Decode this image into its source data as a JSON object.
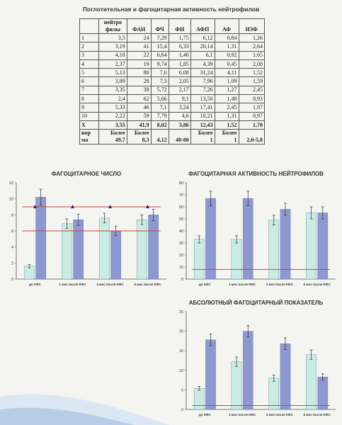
{
  "page_title": "Поглотительная и фагоцитарная активность нейтрофилов",
  "table": {
    "columns": [
      "",
      "нейтро\nфилы",
      "ФАН",
      "ФЧ",
      "ФИ",
      "АФП",
      "АФ",
      "ИЗФ"
    ],
    "rows": [
      [
        "1",
        "3,5",
        "24",
        "7,29",
        "1,75",
        "6,12",
        "0,84",
        "1,26"
      ],
      [
        "2",
        "3,19",
        "41",
        "15,4",
        "6,33",
        "20,14",
        "1,31",
        "2,64"
      ],
      [
        "3",
        "4,18",
        "22",
        "6,64",
        "1,46",
        "6,1",
        "0,92",
        "1,65"
      ],
      [
        "4",
        "2,37",
        "19",
        "9,74",
        "1,85",
        "4,39",
        "0,45",
        "2,08"
      ],
      [
        "5",
        "5,13",
        "80",
        "7,6",
        "6,08",
        "31,24",
        "4,11",
        "1,52"
      ],
      [
        "6",
        "3,89",
        "28",
        "7,3",
        "2,05",
        "7,96",
        "1,09",
        "1,59"
      ],
      [
        "7",
        "3,35",
        "38",
        "5,72",
        "2,17",
        "7,26",
        "1,27",
        "2,45"
      ],
      [
        "8",
        "2,4",
        "62",
        "5,66",
        "9,1",
        "13,56",
        "1,49",
        "0,93"
      ],
      [
        "9",
        "5,33",
        "46",
        "7,1",
        "3,24",
        "17,41",
        "2,45",
        "1,97"
      ],
      [
        "10",
        "2,22",
        "59",
        "7,79",
        "4,6",
        "10,21",
        "1,31",
        "0,97"
      ],
      [
        "X",
        "3,55",
        "41,9",
        "8,02",
        "3,86",
        "12,43",
        "1,52",
        "1,70"
      ]
    ],
    "norm_row": [
      "нор\nма",
      "Более\n49,7",
      "Более\n8,3",
      "4,12",
      "40-80",
      "Более\n1",
      "Более\n1",
      "2,0-5,8"
    ]
  },
  "chart_data": [
    {
      "type": "bar",
      "title": "ФАГОЦИТАРНОЕ ЧИСЛО",
      "categories": [
        "до КФС",
        "1 мес после КФС",
        "3 мес после КФС",
        "6 мес после КФС"
      ],
      "series": [
        {
          "values": [
            1.6,
            6.9,
            7.6,
            7.4
          ],
          "color": "#c9ece3"
        },
        {
          "values": [
            10.2,
            7.4,
            6.0,
            8.0
          ],
          "color": "#8c98cf"
        }
      ],
      "errors": [
        [
          0.2,
          0.6,
          0.6,
          0.6
        ],
        [
          1.0,
          0.7,
          0.6,
          0.7
        ]
      ],
      "reference_lines": [
        {
          "value": 9.0,
          "markers": true
        },
        {
          "value": 6.0,
          "markers": false
        }
      ],
      "ylim": [
        0,
        12
      ],
      "yticks": [
        "0",
        "2",
        "4",
        "6",
        "8",
        "10",
        "12"
      ],
      "grid": false
    },
    {
      "type": "bar",
      "title": "ФАГОЦИТАРНАЯ АКТИВНОСТЬ НЕЙТРОФИЛОВ",
      "categories": [
        "до КФС",
        "1 мес после КФС",
        "3 мес после КФС",
        "6 мес после КФС"
      ],
      "series": [
        {
          "values": [
            33,
            33,
            49,
            55
          ],
          "color": "#c9ece3"
        },
        {
          "values": [
            67,
            67,
            58,
            55
          ],
          "color": "#8c98cf"
        }
      ],
      "errors": [
        [
          3,
          3,
          4,
          5
        ],
        [
          6,
          6,
          5,
          5
        ]
      ],
      "reference_lines": [
        {
          "value": 8,
          "markers": false
        }
      ],
      "ylim": [
        0,
        80
      ],
      "yticks": [
        "0",
        "10",
        "20",
        "30",
        "40",
        "50",
        "60",
        "70",
        "80"
      ],
      "grid": false
    },
    {
      "type": "bar",
      "title": "АБСОЛЮТНЫЙ ФАГОЦИТАРНЫЙ ПОКАЗАТЕЛЬ",
      "categories": [
        "до КФС",
        "1 мес после КФС",
        "3 мес после КФС",
        "6 мес после КФС"
      ],
      "series": [
        {
          "values": [
            5.4,
            12.2,
            8.0,
            14.0
          ],
          "color": "#c9ece3"
        },
        {
          "values": [
            17.8,
            20.0,
            16.8,
            8.3
          ],
          "color": "#8c98cf"
        }
      ],
      "errors": [
        [
          0.5,
          1.2,
          0.8,
          1.2
        ],
        [
          1.5,
          1.5,
          1.5,
          0.8
        ]
      ],
      "reference_lines": [
        {
          "value": 1.0,
          "markers": false
        }
      ],
      "ylim": [
        0,
        25
      ],
      "yticks": [
        "0",
        "5",
        "10",
        "15",
        "20",
        "25"
      ],
      "grid": false
    }
  ]
}
